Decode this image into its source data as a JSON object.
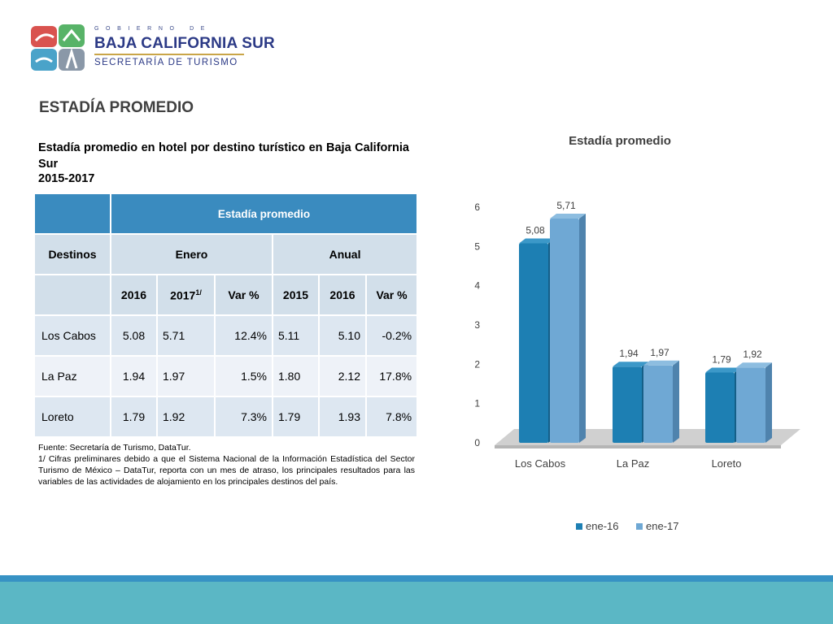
{
  "header": {
    "gov_line": "GOBIERNO DE",
    "state_name": "BAJA CALIFORNIA SUR",
    "ministry": "SECRETARÍA DE TURISMO"
  },
  "page_title": "ESTADÍA PROMEDIO",
  "subtitle": "Estadía promedio en hotel por destino turístico en Baja California Sur",
  "subtitle_years": "2015-2017",
  "table": {
    "group_header": "Estadía promedio",
    "col_destinos": "Destinos",
    "col_enero": "Enero",
    "col_anual": "Anual",
    "sub_2016": "2016",
    "sub_2017": "2017",
    "sub_2017_note": "1/",
    "sub_var": "Var %",
    "sub_2015": "2015",
    "sub_2016b": "2016",
    "sub_varb": "Var %",
    "rows": [
      {
        "destino": "Los Cabos",
        "ene_2016": "5.08",
        "ene_2017": "5.71",
        "ene_var": "12.4%",
        "an_2015": "5.11",
        "an_2016": "5.10",
        "an_var": "-0.2%"
      },
      {
        "destino": "La Paz",
        "ene_2016": "1.94",
        "ene_2017": "1.97",
        "ene_var": "1.5%",
        "an_2015": "1.80",
        "an_2016": "2.12",
        "an_var": "17.8%"
      },
      {
        "destino": "Loreto",
        "ene_2016": "1.79",
        "ene_2017": "1.92",
        "ene_var": "7.3%",
        "an_2015": "1.79",
        "an_2016": "1.93",
        "an_var": "7.8%"
      }
    ]
  },
  "notes": {
    "source": "Fuente: Secretaría de Turismo, DataTur.",
    "footnote": "1/ Cifras preliminares debido a que el Sistema Nacional de la Información Estadística del Sector Turismo de México – DataTur, reporta con un mes de atraso, los principales resultados  para las variables de las actividades de alojamiento en los principales destinos del país."
  },
  "colors": {
    "series_1": "#1d7fb3",
    "series_2": "#6fa8d4",
    "table_header": "#3a8bbf"
  },
  "chart_data": {
    "type": "bar",
    "title": "Estadía promedio",
    "categories": [
      "Los Cabos",
      "La Paz",
      "Loreto"
    ],
    "series": [
      {
        "name": "ene-16",
        "values": [
          5.08,
          1.94,
          1.79
        ],
        "labels": [
          "5,08",
          "1,94",
          "1,79"
        ]
      },
      {
        "name": "ene-17",
        "values": [
          5.71,
          1.97,
          1.92
        ],
        "labels": [
          "5,71",
          "1,97",
          "1,92"
        ]
      }
    ],
    "ylim": [
      0,
      6
    ],
    "yticks": [
      "0",
      "1",
      "2",
      "3",
      "4",
      "5",
      "6"
    ],
    "grid": false,
    "legend": "bottom",
    "style": "3d"
  }
}
